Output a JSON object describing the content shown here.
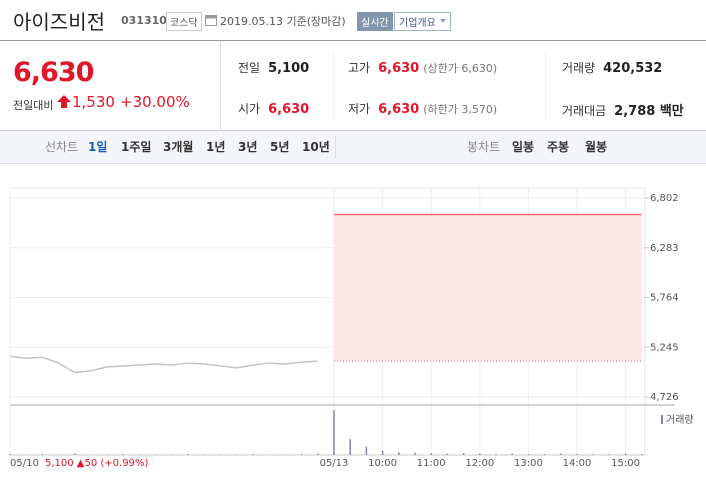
{
  "header": {
    "name": "아이즈비전",
    "code": "031310",
    "market": "코스닥",
    "date": "2019.05.13 기준(장마감)",
    "realtime_button": "실시간",
    "company_button": "기업개요"
  },
  "quote": {
    "price": "6,630",
    "change_label": "전일대비",
    "change": "1,530",
    "change_rate": "+30.00%"
  },
  "stats": [
    [
      {
        "label": "전일",
        "value": "5,100"
      },
      {
        "label": "고가",
        "value": "6,630",
        "up": true,
        "note": "(상한가 6,630)"
      },
      {
        "label": "거래량",
        "value": "420,532"
      }
    ],
    [
      {
        "label": "시가",
        "value": "6,630",
        "up": true
      },
      {
        "label": "저가",
        "value": "6,630",
        "up": true,
        "note": "(하한가 3,570)"
      },
      {
        "label": "거래대금",
        "value": "2,788 백만"
      }
    ]
  ],
  "tabs": {
    "line_label": "선차트",
    "line_periods": [
      "1일",
      "1주일",
      "3개월",
      "1년",
      "3년",
      "5년",
      "10년"
    ],
    "selected": 0,
    "candle_label": "봉차트",
    "candle_periods": [
      "일봉",
      "주봉",
      "월봉"
    ]
  },
  "chart_data": {
    "type": "line",
    "categories": [
      "05/10",
      null,
      null,
      null,
      null,
      null,
      null,
      null,
      null,
      null,
      null,
      null,
      null,
      null,
      null,
      null,
      null,
      null,
      null,
      null,
      "05/13",
      null,
      null,
      "10:00",
      null,
      null,
      "11:00",
      null,
      null,
      "12:00",
      null,
      null,
      "13:00",
      null,
      null,
      "14:00",
      null,
      null,
      "15:00",
      null
    ],
    "series": [
      {
        "color": "#c4c4c4",
        "values": [
          5150,
          5130,
          5140,
          5080,
          4980,
          5000,
          5040,
          5050,
          5060,
          5070,
          5060,
          5080,
          5070,
          5050,
          5030,
          5060,
          5080,
          5070,
          5090,
          5100,
          null,
          null,
          null,
          null,
          null,
          null,
          null,
          null,
          null,
          null,
          null,
          null,
          null,
          null,
          null,
          null,
          null,
          null,
          null,
          null
        ]
      },
      {
        "color": "#f06b75",
        "fill": "#fde6e8",
        "values": [
          null,
          null,
          null,
          null,
          null,
          null,
          null,
          null,
          null,
          null,
          null,
          null,
          null,
          null,
          null,
          null,
          null,
          null,
          null,
          null,
          6630,
          6630,
          6630,
          6630,
          6630,
          6630,
          6630,
          6630,
          6630,
          6630,
          6630,
          6630,
          6630,
          6630,
          6630,
          6630,
          6630,
          6630,
          6630,
          6630
        ]
      },
      {
        "name": "거래량",
        "type": "bar",
        "axis": "y2",
        "color": "#8c7fb5",
        "values": [
          2,
          1,
          2,
          1,
          3,
          1,
          1,
          2,
          1,
          1,
          1,
          2,
          1,
          1,
          1,
          2,
          1,
          1,
          2,
          3,
          100,
          35,
          18,
          10,
          6,
          5,
          4,
          3,
          4,
          3,
          2,
          3,
          2,
          2,
          3,
          2,
          2,
          2,
          3,
          2
        ]
      }
    ],
    "baseline": 5100,
    "ylim": [
      4726,
      6802
    ],
    "yticks": [
      {
        "value": 6802,
        "label": "6,802"
      },
      {
        "value": 6283,
        "label": "6,283"
      },
      {
        "value": 5764,
        "label": "5,764"
      },
      {
        "value": 5245,
        "label": "5,245"
      },
      {
        "value": 4726,
        "label": "4,726"
      }
    ],
    "y2lim": [
      0,
      100
    ],
    "grid": true,
    "note": "5,100 ▲50 (+0.99%)"
  }
}
